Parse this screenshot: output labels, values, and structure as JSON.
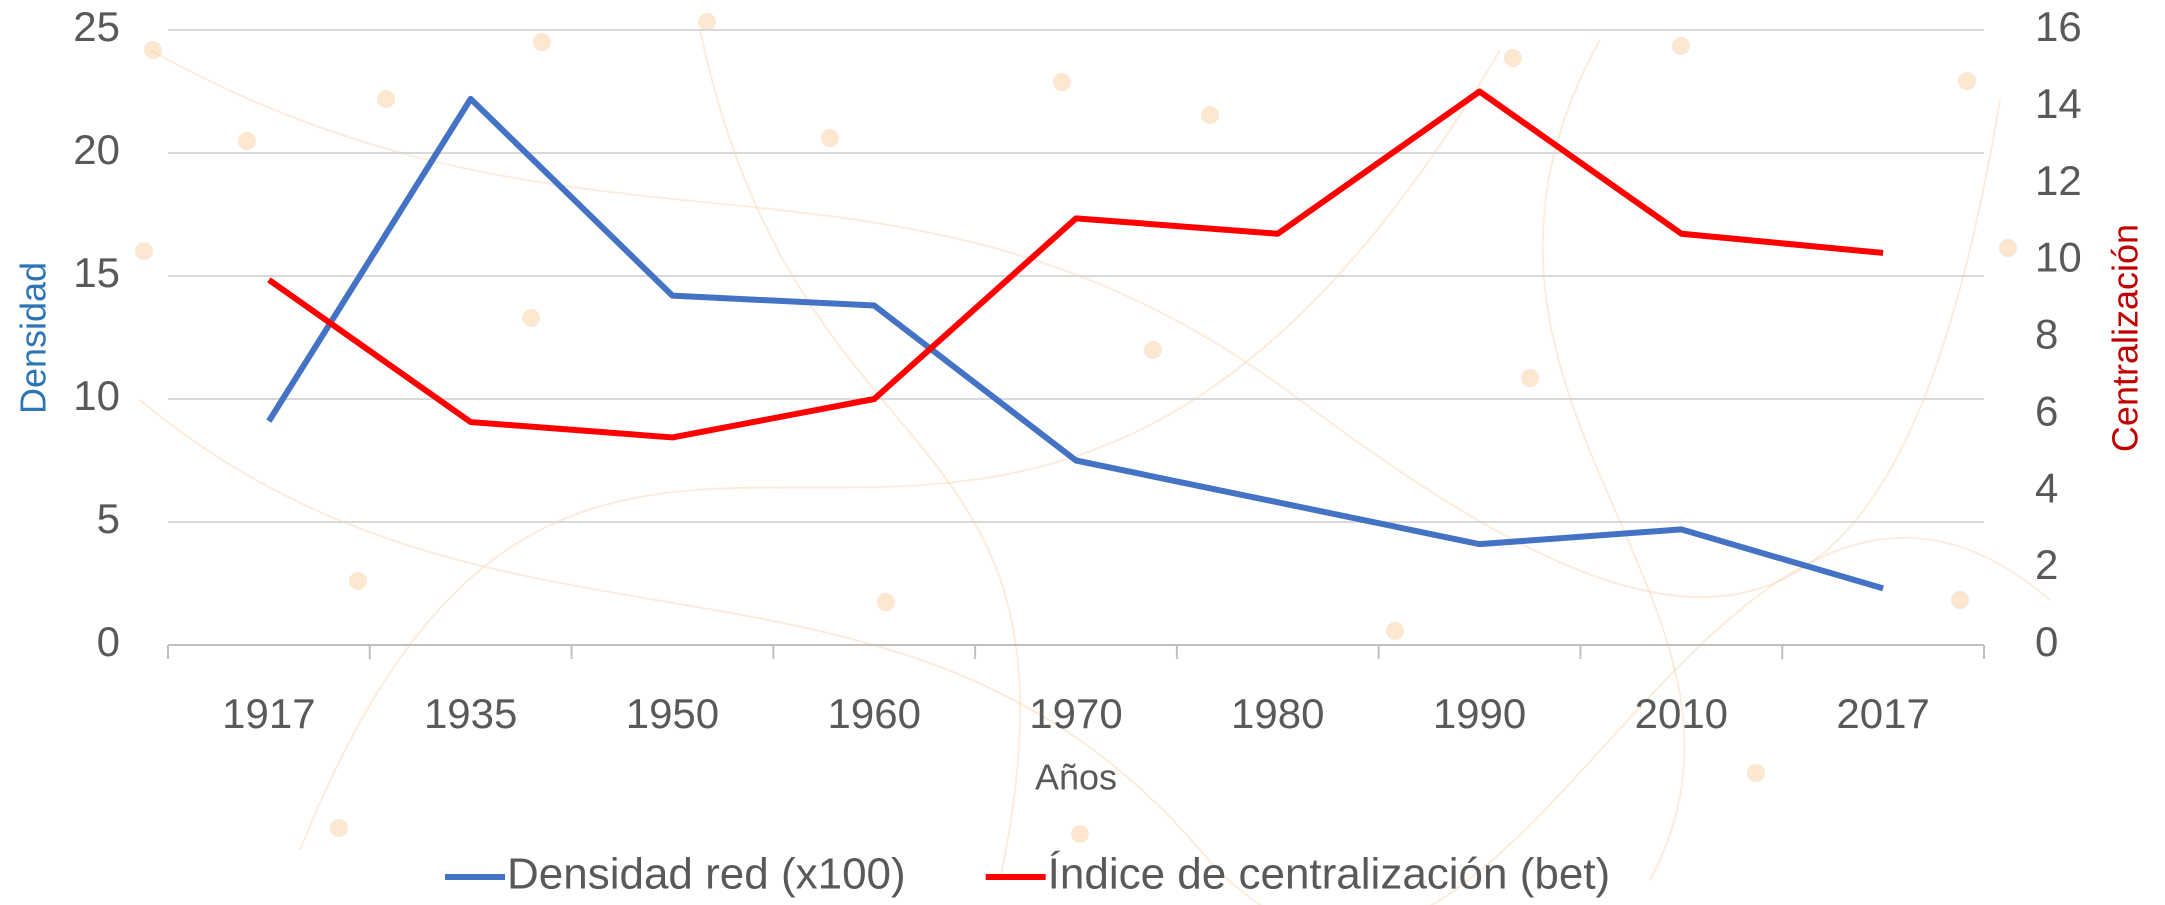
{
  "chart_data": {
    "type": "line",
    "xlabel": "Años",
    "ylabel": "Densidad",
    "y2label": "Centralización",
    "categories": [
      "1917",
      "1935",
      "1950",
      "1960",
      "1970",
      "1980",
      "1990",
      "2010",
      "2017"
    ],
    "series": [
      {
        "name": "Densidad red (x100)",
        "color": "#4472c4",
        "values": [
          9.1,
          22.2,
          14.2,
          13.8,
          7.5,
          5.8,
          4.1,
          4.7,
          2.3
        ]
      },
      {
        "name": "Índice de centralización (bet)",
        "color": "#ff0000",
        "axis": "y2",
        "values": [
          9.5,
          5.8,
          5.4,
          6.4,
          11.1,
          10.7,
          14.4,
          10.7,
          10.2
        ]
      }
    ],
    "ylim": [
      0,
      25
    ],
    "yticks": [
      0,
      5,
      10,
      15,
      20,
      25
    ],
    "y2lim": [
      0,
      16
    ],
    "y2ticks": [
      0,
      2,
      4,
      6,
      8,
      10,
      12,
      14,
      16
    ],
    "grid": true,
    "legend": "bottom"
  }
}
